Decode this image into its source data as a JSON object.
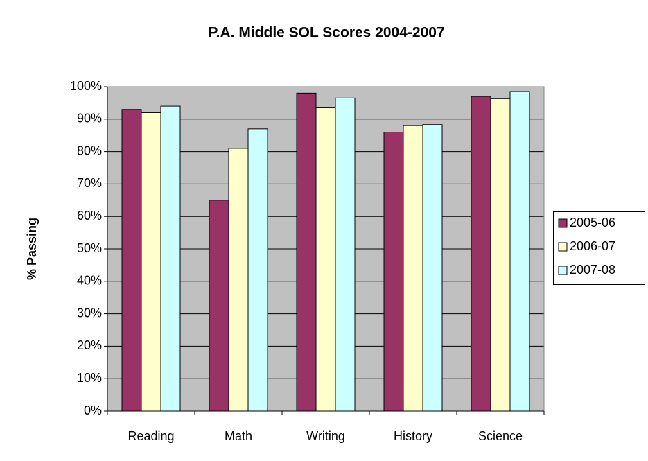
{
  "chart_data": {
    "type": "bar",
    "title": "P.A. Middle SOL Scores 2004-2007",
    "y_label": "% Passing",
    "categories": [
      "Reading",
      "Math",
      "Writing",
      "History",
      "Science"
    ],
    "series": [
      {
        "name": "2005-06",
        "color": "#993366",
        "values": [
          93,
          65,
          98,
          86,
          97
        ]
      },
      {
        "name": "2006-07",
        "color": "#ffffcc",
        "values": [
          92,
          81,
          93.5,
          88,
          96.3
        ]
      },
      {
        "name": "2007-08",
        "color": "#ccffff",
        "values": [
          94,
          87,
          96.5,
          88.3,
          98.5
        ]
      }
    ],
    "ylim": [
      0,
      100
    ],
    "yticks": [
      {
        "value": 0,
        "label": "0%"
      },
      {
        "value": 10,
        "label": "10%"
      },
      {
        "value": 20,
        "label": "20%"
      },
      {
        "value": 30,
        "label": "30%"
      },
      {
        "value": 40,
        "label": "40%"
      },
      {
        "value": 50,
        "label": "50%"
      },
      {
        "value": 60,
        "label": "60%"
      },
      {
        "value": 70,
        "label": "70%"
      },
      {
        "value": 80,
        "label": "80%"
      },
      {
        "value": 90,
        "label": "90%"
      },
      {
        "value": 100,
        "label": "100%"
      }
    ],
    "grid": true,
    "legend": "right"
  }
}
